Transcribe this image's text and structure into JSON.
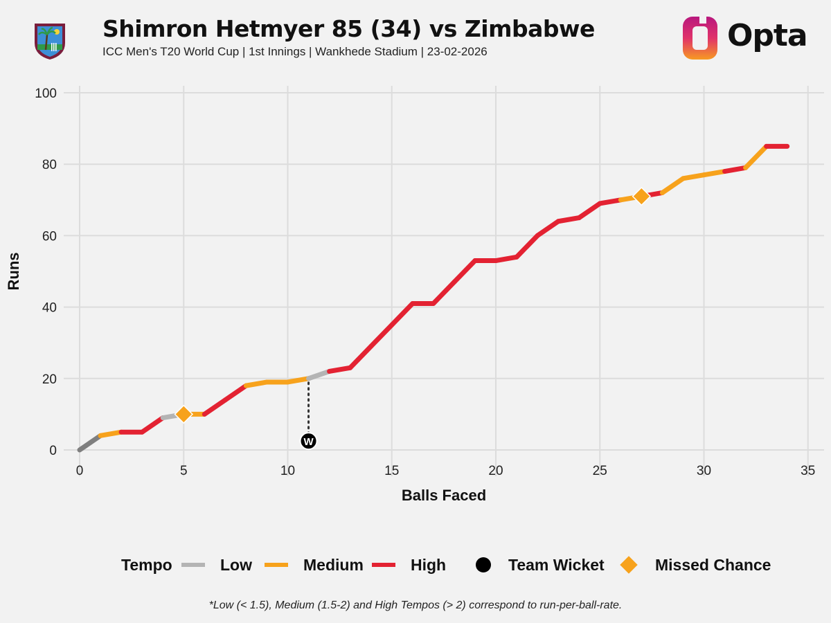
{
  "header": {
    "title": "Shimron Hetmyer 85 (34) vs Zimbabwe",
    "subtitle": "ICC Men's T20 World Cup | 1st Innings | Wankhede Stadium | 23-02-2026",
    "brand": "Opta"
  },
  "legend": {
    "tempo_label": "Tempo",
    "low_label": "Low",
    "medium_label": "Medium",
    "high_label": "High",
    "wicket_label": "Team Wicket",
    "missed_label": "Missed Chance"
  },
  "footnote": "*Low (< 1.5), Medium (1.5-2) and High Tempos (> 2) correspond to run-per-ball-rate.",
  "colors": {
    "low": "#b4b4b4",
    "low_dark": "#7f7f7f",
    "medium": "#f7a21c",
    "high": "#e32232",
    "wicket": "#000000",
    "missed": "#f7a21c",
    "grid": "#dcdcdc",
    "background": "#f2f2f2"
  },
  "chart_data": {
    "type": "line",
    "title": "Shimron Hetmyer 85 (34) vs Zimbabwe",
    "xlabel": "Balls Faced",
    "ylabel": "Runs",
    "xlim": [
      0,
      35
    ],
    "ylim": [
      0,
      100
    ],
    "xticks": [
      0,
      5,
      10,
      15,
      20,
      25,
      30,
      35
    ],
    "yticks": [
      0,
      20,
      40,
      60,
      80,
      100
    ],
    "grid": true,
    "legend_position": "bottom",
    "points": [
      {
        "x": 0,
        "y": 0
      },
      {
        "x": 1,
        "y": 4,
        "tempo": "medium"
      },
      {
        "x": 2,
        "y": 5,
        "tempo": "medium"
      },
      {
        "x": 3,
        "y": 5,
        "tempo": "high"
      },
      {
        "x": 4,
        "y": 9,
        "tempo": "high"
      },
      {
        "x": 5,
        "y": 10,
        "tempo": "low"
      },
      {
        "x": 6,
        "y": 10,
        "tempo": "medium"
      },
      {
        "x": 7,
        "y": 14,
        "tempo": "high"
      },
      {
        "x": 8,
        "y": 18,
        "tempo": "high"
      },
      {
        "x": 9,
        "y": 19,
        "tempo": "medium"
      },
      {
        "x": 10,
        "y": 19,
        "tempo": "medium"
      },
      {
        "x": 11,
        "y": 20,
        "tempo": "medium"
      },
      {
        "x": 12,
        "y": 22,
        "tempo": "low"
      },
      {
        "x": 13,
        "y": 23,
        "tempo": "high"
      },
      {
        "x": 14,
        "y": 29,
        "tempo": "high"
      },
      {
        "x": 15,
        "y": 35,
        "tempo": "high"
      },
      {
        "x": 16,
        "y": 41,
        "tempo": "high"
      },
      {
        "x": 17,
        "y": 41,
        "tempo": "high"
      },
      {
        "x": 18,
        "y": 47,
        "tempo": "high"
      },
      {
        "x": 19,
        "y": 53,
        "tempo": "high"
      },
      {
        "x": 20,
        "y": 53,
        "tempo": "high"
      },
      {
        "x": 21,
        "y": 54,
        "tempo": "high"
      },
      {
        "x": 22,
        "y": 60,
        "tempo": "high"
      },
      {
        "x": 23,
        "y": 64,
        "tempo": "high"
      },
      {
        "x": 24,
        "y": 65,
        "tempo": "high"
      },
      {
        "x": 25,
        "y": 69,
        "tempo": "high"
      },
      {
        "x": 26,
        "y": 70,
        "tempo": "high"
      },
      {
        "x": 27,
        "y": 71,
        "tempo": "medium"
      },
      {
        "x": 28,
        "y": 72,
        "tempo": "high"
      },
      {
        "x": 29,
        "y": 76,
        "tempo": "medium"
      },
      {
        "x": 30,
        "y": 77,
        "tempo": "medium"
      },
      {
        "x": 31,
        "y": 78,
        "tempo": "medium"
      },
      {
        "x": 32,
        "y": 79,
        "tempo": "high"
      },
      {
        "x": 33,
        "y": 85,
        "tempo": "medium"
      },
      {
        "x": 34,
        "y": 85,
        "tempo": "high"
      }
    ],
    "first_segment_tempo": "low_dark",
    "team_wickets": [
      {
        "x": 11,
        "y": 20,
        "label": "W",
        "marker_y": 2.5
      }
    ],
    "missed_chances": [
      {
        "x": 5,
        "y": 10
      },
      {
        "x": 27,
        "y": 71
      }
    ]
  }
}
